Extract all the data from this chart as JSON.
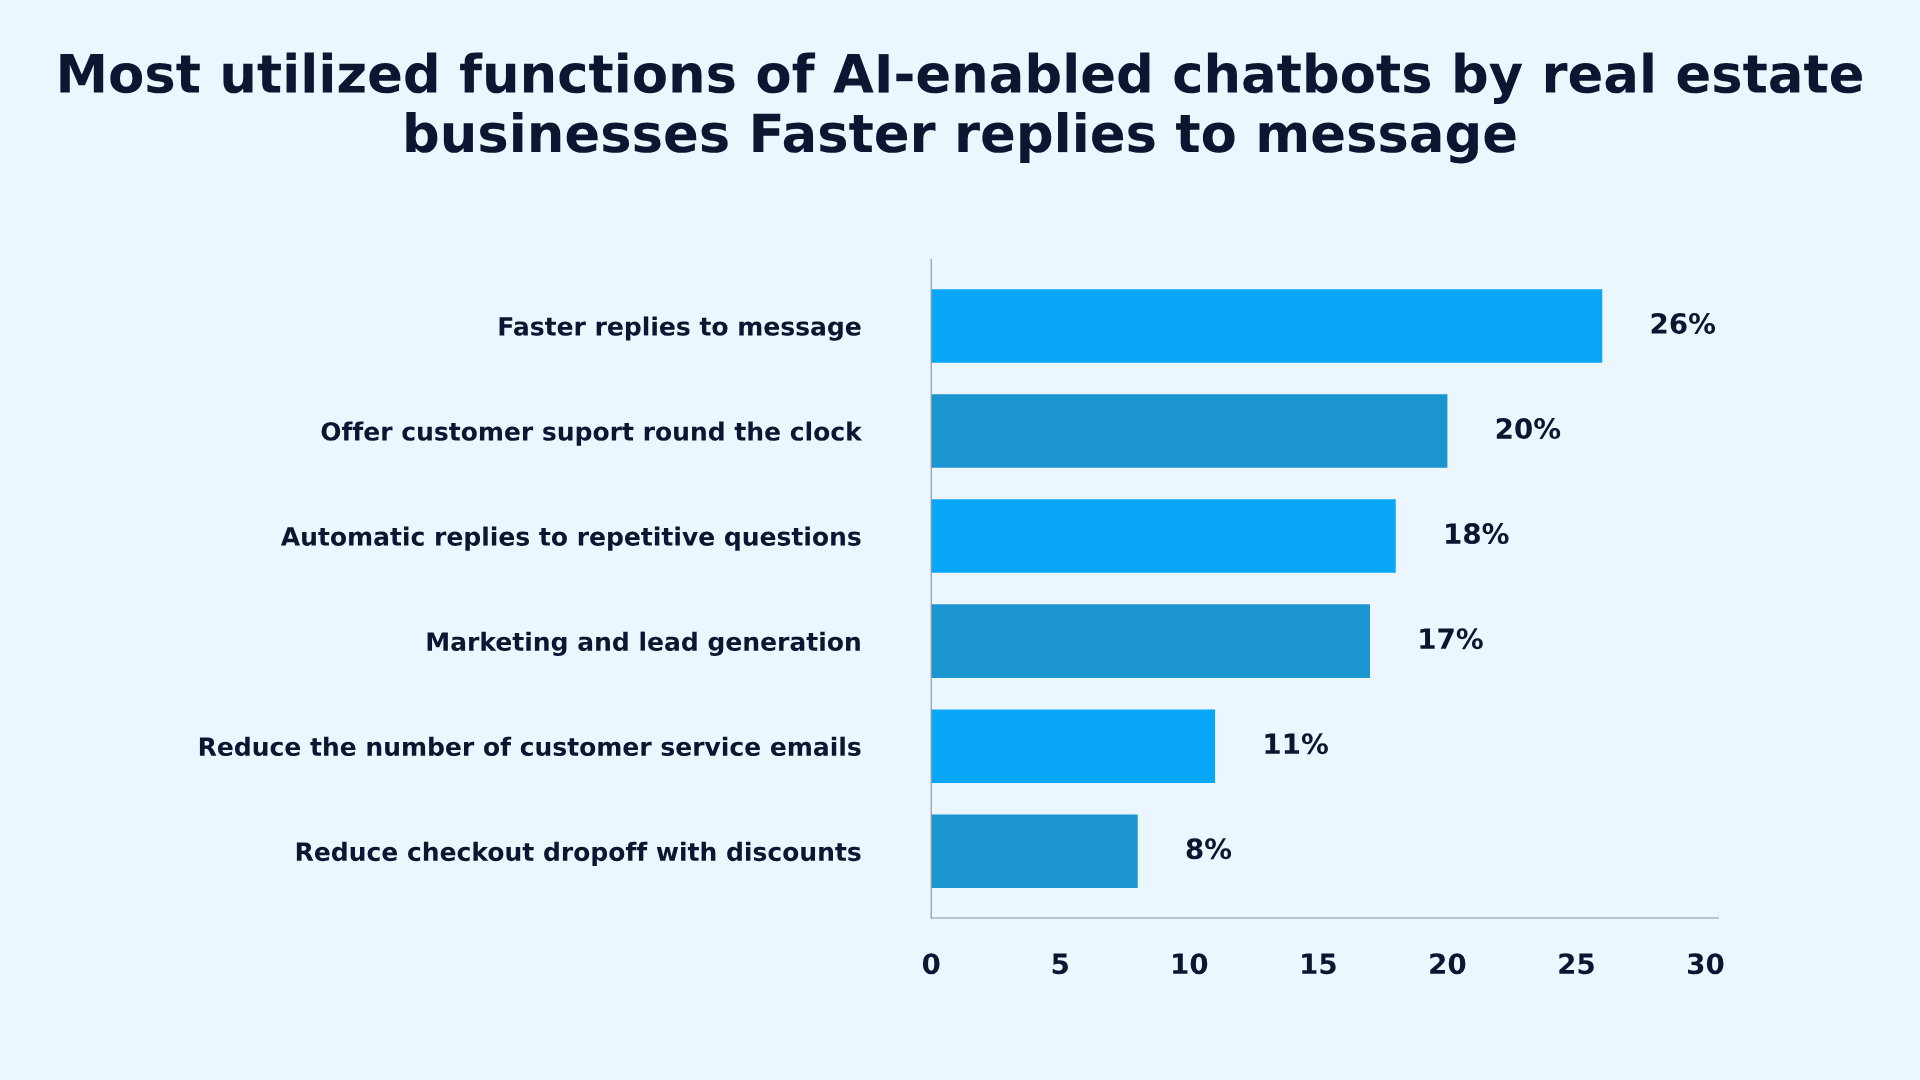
{
  "chart_data": {
    "type": "bar",
    "orientation": "horizontal",
    "title": "Most utilized functions of AI-enabled chatbots by real estate businesses Faster replies to message",
    "categories": [
      "Faster replies to message",
      "Offer customer suport round the clock",
      "Automatic replies to repetitive questions",
      "Marketing and lead generation",
      "Reduce the number of customer service emails",
      "Reduce checkout dropoff with discounts"
    ],
    "values": [
      26,
      20,
      18,
      17,
      11,
      8
    ],
    "colors": [
      "#08a6f6",
      "#1b95d0",
      "#08a6f6",
      "#1b95d0",
      "#08a6f6",
      "#1b95d0"
    ],
    "value_labels": [
      "26%",
      "20%",
      "18%",
      "17%",
      "11%",
      "8%"
    ],
    "xlim": [
      0,
      30.5
    ],
    "xticks": [
      0,
      5,
      10,
      15,
      20,
      25,
      30
    ],
    "grid": false,
    "legend": false
  }
}
